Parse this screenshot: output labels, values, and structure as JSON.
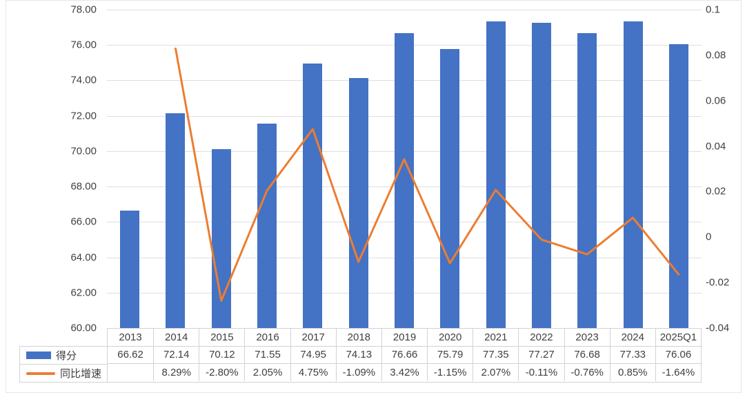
{
  "chart_data": {
    "type": "combo",
    "categories": [
      "2013",
      "2014",
      "2015",
      "2016",
      "2017",
      "2018",
      "2019",
      "2020",
      "2021",
      "2022",
      "2023",
      "2024",
      "2025Q1"
    ],
    "series": [
      {
        "name": "得分",
        "type": "bar",
        "axis": "left",
        "values": [
          66.62,
          72.14,
          70.12,
          71.55,
          74.95,
          74.13,
          76.66,
          75.79,
          77.35,
          77.27,
          76.68,
          77.33,
          76.06
        ]
      },
      {
        "name": "同比增速",
        "type": "line",
        "axis": "right",
        "values_percent": [
          null,
          8.29,
          -2.8,
          2.05,
          4.75,
          -1.09,
          3.42,
          -1.15,
          2.07,
          -0.11,
          -0.76,
          0.85,
          -1.64
        ]
      }
    ],
    "left_axis": {
      "min": 60,
      "max": 78,
      "step": 2,
      "tick_labels": [
        "78.00",
        "76.00",
        "74.00",
        "72.00",
        "70.00",
        "68.00",
        "66.00",
        "64.00",
        "62.00",
        "60.00"
      ]
    },
    "right_axis": {
      "min": -0.04,
      "max": 0.1,
      "step": 0.02,
      "tick_labels": [
        "0.1",
        "0.08",
        "0.06",
        "0.04",
        "0.02",
        "0",
        "-0.02",
        "-0.04"
      ]
    },
    "grid": "horizontal",
    "legend_position": "bottom-left-table"
  },
  "table": {
    "year_header": [
      "2013",
      "2014",
      "2015",
      "2016",
      "2017",
      "2018",
      "2019",
      "2020",
      "2021",
      "2022",
      "2023",
      "2024",
      "2025Q1"
    ],
    "rows": [
      {
        "label": "得分",
        "values": [
          "66.62",
          "72.14",
          "70.12",
          "71.55",
          "74.95",
          "74.13",
          "76.66",
          "75.79",
          "77.35",
          "77.27",
          "76.68",
          "77.33",
          "76.06"
        ]
      },
      {
        "label": "同比增速",
        "values": [
          "",
          "8.29%",
          "-2.80%",
          "2.05%",
          "4.75%",
          "-1.09%",
          "3.42%",
          "-1.15%",
          "2.07%",
          "-0.11%",
          "-0.76%",
          "0.85%",
          "-1.64%"
        ]
      }
    ]
  },
  "colors": {
    "bar": "#4472C4",
    "line": "#ED7D31",
    "grid": "#DEDEDE",
    "table_border": "#D2D2D2",
    "text": "#3F3F3F"
  }
}
